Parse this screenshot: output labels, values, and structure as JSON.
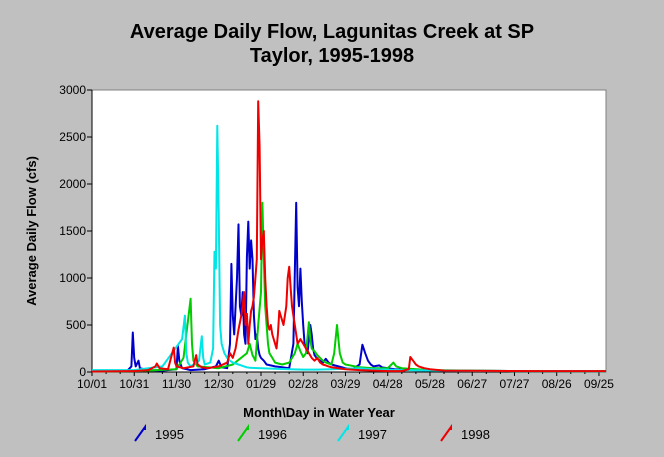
{
  "chart_data": {
    "type": "line",
    "title_lines": [
      "Average Daily Flow, Lagunitas Creek at SP",
      "Taylor, 1995-1998"
    ],
    "xlabel": "Month\\Day in Water Year",
    "ylabel": "Average Daily Flow (cfs)",
    "x_unit": "day of water year",
    "xlim": [
      0,
      365
    ],
    "ylim": [
      0,
      3000
    ],
    "y_ticks": [
      0,
      500,
      1000,
      1500,
      2000,
      2500,
      3000
    ],
    "x_tick_values": [
      0,
      30,
      60,
      90,
      120,
      150,
      180,
      210,
      240,
      270,
      300,
      330,
      360
    ],
    "x_tick_labels": [
      "10/01",
      "10/31",
      "11/30",
      "12/30",
      "01/29",
      "02/28",
      "03/29",
      "04/28",
      "05/28",
      "06/27",
      "07/27",
      "08/26",
      "09/25"
    ],
    "grid": false,
    "legend_position": "bottom",
    "series": [
      {
        "name": "1995",
        "color": "#0000cc",
        "points": [
          [
            0,
            10
          ],
          [
            25,
            12
          ],
          [
            28,
            60
          ],
          [
            29,
            420
          ],
          [
            30,
            150
          ],
          [
            31,
            60
          ],
          [
            33,
            120
          ],
          [
            34,
            40
          ],
          [
            40,
            20
          ],
          [
            50,
            15
          ],
          [
            60,
            30
          ],
          [
            61,
            280
          ],
          [
            62,
            120
          ],
          [
            64,
            40
          ],
          [
            70,
            20
          ],
          [
            80,
            30
          ],
          [
            88,
            60
          ],
          [
            90,
            120
          ],
          [
            92,
            50
          ],
          [
            96,
            40
          ],
          [
            98,
            300
          ],
          [
            99,
            1150
          ],
          [
            100,
            600
          ],
          [
            101,
            400
          ],
          [
            103,
            1000
          ],
          [
            104,
            1570
          ],
          [
            105,
            700
          ],
          [
            106,
            600
          ],
          [
            107,
            850
          ],
          [
            108,
            400
          ],
          [
            109,
            300
          ],
          [
            110,
            1220
          ],
          [
            111,
            1600
          ],
          [
            112,
            1100
          ],
          [
            113,
            1400
          ],
          [
            114,
            1200
          ],
          [
            115,
            600
          ],
          [
            116,
            350
          ],
          [
            117,
            400
          ],
          [
            118,
            250
          ],
          [
            119,
            180
          ],
          [
            120,
            150
          ],
          [
            122,
            120
          ],
          [
            124,
            80
          ],
          [
            130,
            60
          ],
          [
            135,
            50
          ],
          [
            140,
            40
          ],
          [
            143,
            300
          ],
          [
            145,
            1800
          ],
          [
            146,
            900
          ],
          [
            147,
            700
          ],
          [
            148,
            1100
          ],
          [
            149,
            750
          ],
          [
            150,
            500
          ],
          [
            151,
            300
          ],
          [
            152,
            250
          ],
          [
            153,
            200
          ],
          [
            154,
            350
          ],
          [
            155,
            500
          ],
          [
            156,
            400
          ],
          [
            157,
            250
          ],
          [
            158,
            180
          ],
          [
            160,
            140
          ],
          [
            162,
            120
          ],
          [
            164,
            100
          ],
          [
            166,
            140
          ],
          [
            168,
            100
          ],
          [
            170,
            80
          ],
          [
            175,
            60
          ],
          [
            180,
            40
          ],
          [
            185,
            30
          ],
          [
            190,
            80
          ],
          [
            192,
            290
          ],
          [
            194,
            200
          ],
          [
            196,
            120
          ],
          [
            198,
            80
          ],
          [
            200,
            60
          ],
          [
            204,
            70
          ],
          [
            206,
            50
          ],
          [
            210,
            40
          ],
          [
            215,
            30
          ],
          [
            220,
            25
          ],
          [
            230,
            20
          ],
          [
            250,
            15
          ],
          [
            280,
            12
          ],
          [
            320,
            10
          ],
          [
            365,
            10
          ]
        ]
      },
      {
        "name": "1996",
        "color": "#00cc00",
        "points": [
          [
            0,
            5
          ],
          [
            30,
            10
          ],
          [
            60,
            30
          ],
          [
            65,
            150
          ],
          [
            70,
            780
          ],
          [
            71,
            300
          ],
          [
            72,
            120
          ],
          [
            75,
            60
          ],
          [
            90,
            40
          ],
          [
            100,
            80
          ],
          [
            110,
            200
          ],
          [
            112,
            300
          ],
          [
            114,
            180
          ],
          [
            116,
            120
          ],
          [
            118,
            500
          ],
          [
            120,
            850
          ],
          [
            121,
            1800
          ],
          [
            122,
            1200
          ],
          [
            123,
            700
          ],
          [
            124,
            500
          ],
          [
            125,
            300
          ],
          [
            126,
            200
          ],
          [
            128,
            150
          ],
          [
            130,
            100
          ],
          [
            135,
            80
          ],
          [
            140,
            100
          ],
          [
            144,
            200
          ],
          [
            146,
            300
          ],
          [
            148,
            220
          ],
          [
            150,
            160
          ],
          [
            152,
            200
          ],
          [
            154,
            530
          ],
          [
            155,
            350
          ],
          [
            156,
            250
          ],
          [
            158,
            220
          ],
          [
            160,
            180
          ],
          [
            162,
            150
          ],
          [
            164,
            120
          ],
          [
            166,
            100
          ],
          [
            168,
            90
          ],
          [
            170,
            80
          ],
          [
            172,
            200
          ],
          [
            174,
            500
          ],
          [
            176,
            200
          ],
          [
            178,
            100
          ],
          [
            180,
            80
          ],
          [
            190,
            50
          ],
          [
            200,
            40
          ],
          [
            210,
            40
          ],
          [
            214,
            100
          ],
          [
            216,
            60
          ],
          [
            220,
            40
          ],
          [
            240,
            20
          ],
          [
            270,
            15
          ],
          [
            300,
            10
          ],
          [
            365,
            8
          ]
        ]
      },
      {
        "name": "1997",
        "color": "#00e5e5",
        "points": [
          [
            0,
            20
          ],
          [
            30,
            20
          ],
          [
            50,
            60
          ],
          [
            64,
            350
          ],
          [
            66,
            600
          ],
          [
            67,
            200
          ],
          [
            68,
            100
          ],
          [
            70,
            60
          ],
          [
            76,
            120
          ],
          [
            78,
            380
          ],
          [
            79,
            150
          ],
          [
            80,
            80
          ],
          [
            84,
            100
          ],
          [
            86,
            250
          ],
          [
            87,
            1280
          ],
          [
            88,
            1100
          ],
          [
            89,
            2620
          ],
          [
            90,
            1700
          ],
          [
            91,
            500
          ],
          [
            92,
            300
          ],
          [
            94,
            200
          ],
          [
            96,
            150
          ],
          [
            98,
            120
          ],
          [
            100,
            100
          ],
          [
            102,
            90
          ],
          [
            104,
            80
          ],
          [
            106,
            70
          ],
          [
            108,
            60
          ],
          [
            110,
            50
          ],
          [
            112,
            45
          ],
          [
            120,
            40
          ],
          [
            130,
            35
          ],
          [
            140,
            30
          ],
          [
            150,
            25
          ],
          [
            160,
            25
          ],
          [
            170,
            30
          ],
          [
            180,
            35
          ],
          [
            190,
            40
          ],
          [
            200,
            30
          ],
          [
            220,
            20
          ],
          [
            250,
            15
          ],
          [
            300,
            10
          ],
          [
            365,
            8
          ]
        ]
      },
      {
        "name": "1998",
        "color": "#ee0000",
        "points": [
          [
            0,
            5
          ],
          [
            30,
            10
          ],
          [
            40,
            20
          ],
          [
            45,
            60
          ],
          [
            46,
            90
          ],
          [
            48,
            40
          ],
          [
            54,
            30
          ],
          [
            58,
            260
          ],
          [
            59,
            100
          ],
          [
            60,
            60
          ],
          [
            65,
            40
          ],
          [
            72,
            60
          ],
          [
            74,
            180
          ],
          [
            75,
            80
          ],
          [
            78,
            50
          ],
          [
            82,
            40
          ],
          [
            90,
            60
          ],
          [
            96,
            100
          ],
          [
            98,
            200
          ],
          [
            100,
            150
          ],
          [
            102,
            250
          ],
          [
            104,
            450
          ],
          [
            106,
            600
          ],
          [
            107,
            700
          ],
          [
            108,
            850
          ],
          [
            109,
            500
          ],
          [
            110,
            620
          ],
          [
            111,
            300
          ],
          [
            112,
            500
          ],
          [
            113,
            650
          ],
          [
            114,
            700
          ],
          [
            115,
            800
          ],
          [
            116,
            1000
          ],
          [
            117,
            1200
          ],
          [
            118,
            2880
          ],
          [
            119,
            2400
          ],
          [
            120,
            1200
          ],
          [
            121,
            1400
          ],
          [
            122,
            1500
          ],
          [
            123,
            1000
          ],
          [
            124,
            700
          ],
          [
            125,
            500
          ],
          [
            126,
            450
          ],
          [
            127,
            500
          ],
          [
            128,
            400
          ],
          [
            129,
            350
          ],
          [
            130,
            300
          ],
          [
            131,
            250
          ],
          [
            132,
            400
          ],
          [
            133,
            650
          ],
          [
            134,
            600
          ],
          [
            135,
            550
          ],
          [
            136,
            500
          ],
          [
            138,
            700
          ],
          [
            139,
            1000
          ],
          [
            140,
            1120
          ],
          [
            141,
            900
          ],
          [
            142,
            700
          ],
          [
            143,
            600
          ],
          [
            144,
            500
          ],
          [
            145,
            400
          ],
          [
            146,
            300
          ],
          [
            148,
            350
          ],
          [
            150,
            300
          ],
          [
            152,
            250
          ],
          [
            154,
            200
          ],
          [
            156,
            150
          ],
          [
            158,
            120
          ],
          [
            160,
            150
          ],
          [
            162,
            100
          ],
          [
            164,
            80
          ],
          [
            166,
            70
          ],
          [
            168,
            60
          ],
          [
            170,
            50
          ],
          [
            175,
            40
          ],
          [
            180,
            30
          ],
          [
            190,
            20
          ],
          [
            200,
            15
          ],
          [
            210,
            10
          ],
          [
            220,
            10
          ],
          [
            225,
            30
          ],
          [
            226,
            160
          ],
          [
            228,
            120
          ],
          [
            230,
            80
          ],
          [
            232,
            60
          ],
          [
            236,
            40
          ],
          [
            240,
            30
          ],
          [
            250,
            15
          ],
          [
            280,
            12
          ],
          [
            320,
            10
          ],
          [
            365,
            10
          ]
        ]
      }
    ]
  }
}
